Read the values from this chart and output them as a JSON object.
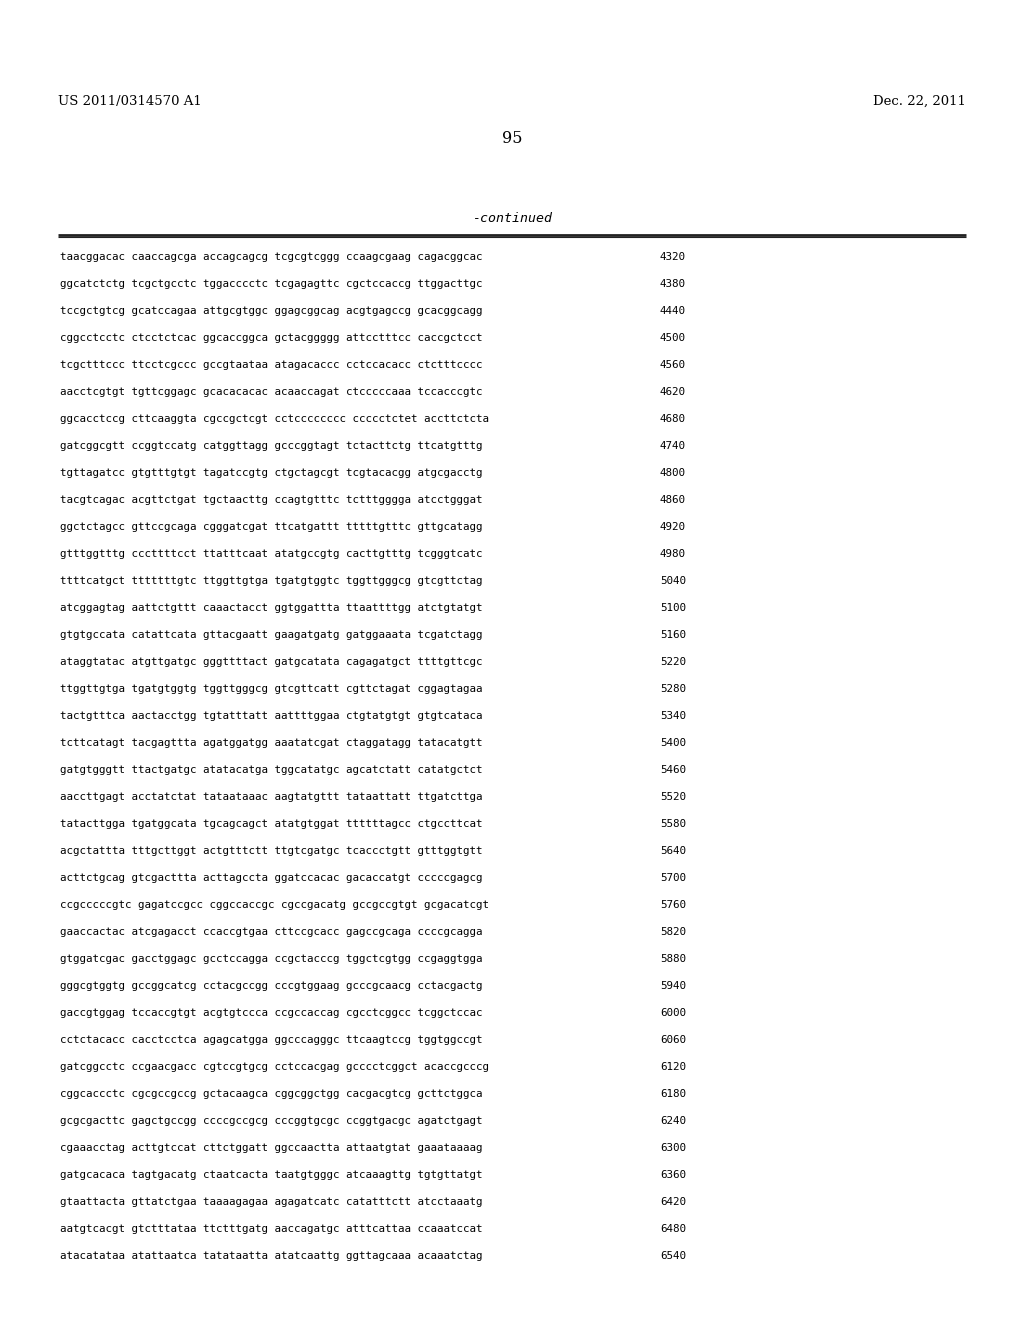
{
  "header_left": "US 2011/0314570 A1",
  "header_right": "Dec. 22, 2011",
  "page_number": "95",
  "continued_label": "-continued",
  "background_color": "#ffffff",
  "text_color": "#000000",
  "font_size_header": 9.5,
  "font_size_body": 7.8,
  "font_size_page": 11.5,
  "font_size_continued": 9.5,
  "sequence_lines": [
    [
      "taacggacac caaccagcga accagcagcg tcgcgtcggg ccaagcgaag cagacggcac",
      "4320"
    ],
    [
      "ggcatctctg tcgctgcctc tggacccctc tcgagagttc cgctccaccg ttggacttgc",
      "4380"
    ],
    [
      "tccgctgtcg gcatccagaa attgcgtggc ggagcggcag acgtgagccg gcacggcagg",
      "4440"
    ],
    [
      "cggcctcctc ctcctctcac ggcaccggca gctacggggg attcctttcc caccgctcct",
      "4500"
    ],
    [
      "tcgctttccc ttcctcgccc gccgtaataa atagacaccc cctccacacc ctctttcccc",
      "4560"
    ],
    [
      "aacctcgtgt tgttcggagc gcacacacac acaaccagat ctcccccaaa tccacccgtc",
      "4620"
    ],
    [
      "ggcacctccg cttcaaggta cgccgctcgt cctcccccccc ccccctctet accttctcta",
      "4680"
    ],
    [
      "gatcggcgtt ccggtccatg catggttagg gcccggtagt tctacttctg ttcatgtttg",
      "4740"
    ],
    [
      "tgttagatcc gtgtttgtgt tagatccgtg ctgctagcgt tcgtacacgg atgcgacctg",
      "4800"
    ],
    [
      "tacgtcagac acgttctgat tgctaacttg ccagtgtttc tctttgggga atcctgggat",
      "4860"
    ],
    [
      "ggctctagcc gttccgcaga cgggatcgat ttcatgattt tttttgtttc gttgcatagg",
      "4920"
    ],
    [
      "gtttggtttg cccttttcct ttatttcaat atatgccgtg cacttgtttg tcgggtcatc",
      "4980"
    ],
    [
      "ttttcatgct tttttttgtc ttggttgtga tgatgtggtc tggttgggcg gtcgttctag",
      "5040"
    ],
    [
      "atcggagtag aattctgttt caaactacct ggtggattta ttaattttgg atctgtatgt",
      "5100"
    ],
    [
      "gtgtgccata catattcata gttacgaatt gaagatgatg gatggaaata tcgatctagg",
      "5160"
    ],
    [
      "ataggtatac atgttgatgc gggttttact gatgcatata cagagatgct ttttgttcgc",
      "5220"
    ],
    [
      "ttggttgtga tgatgtggtg tggttgggcg gtcgttcatt cgttctagat cggagtagaa",
      "5280"
    ],
    [
      "tactgtttca aactacctgg tgtatttatt aattttggaa ctgtatgtgt gtgtcataca",
      "5340"
    ],
    [
      "tcttcatagt tacgagttta agatggatgg aaatatcgat ctaggatagg tatacatgtt",
      "5400"
    ],
    [
      "gatgtgggtt ttactgatgc atatacatga tggcatatgc agcatctatt catatgctct",
      "5460"
    ],
    [
      "aaccttgagt acctatctat tataataaac aagtatgttt tataattatt ttgatcttga",
      "5520"
    ],
    [
      "tatacttgga tgatggcata tgcagcagct atatgtggat ttttttagcc ctgccttcat",
      "5580"
    ],
    [
      "acgctattta tttgcttggt actgtttctt ttgtcgatgc tcaccctgtt gtttggtgtt",
      "5640"
    ],
    [
      "acttctgcag gtcgacttta acttagccta ggatccacac gacaccatgt cccccgagcg",
      "5700"
    ],
    [
      "ccgcccccgtc gagatccgcc cggccaccgc cgccgacatg gccgccgtgt gcgacatcgt",
      "5760"
    ],
    [
      "gaaccactac atcgagacct ccaccgtgaa cttccgcacc gagccgcaga ccccgcagga",
      "5820"
    ],
    [
      "gtggatcgac gacctggagc gcctccagga ccgctacccg tggctcgtgg ccgaggtgga",
      "5880"
    ],
    [
      "gggcgtggtg gccggcatcg cctacgccgg cccgtggaag gcccgcaacg cctacgactg",
      "5940"
    ],
    [
      "gaccgtggag tccaccgtgt acgtgtccca ccgccaccag cgcctcggcc tcggctccac",
      "6000"
    ],
    [
      "cctctacacc cacctcctca agagcatgga ggcccagggc ttcaagtccg tggtggccgt",
      "6060"
    ],
    [
      "gatcggcctc ccgaacgacc cgtccgtgcg cctccacgag gcccctcggct acaccgcccg",
      "6120"
    ],
    [
      "cggcaccctc cgcgccgccg gctacaagca cggcggctgg cacgacgtcg gcttctggca",
      "6180"
    ],
    [
      "gcgcgacttc gagctgccgg ccccgccgcg cccggtgcgc ccggtgacgc agatctgagt",
      "6240"
    ],
    [
      "cgaaacctag acttgtccat cttctggatt ggccaactta attaatgtat gaaataaaag",
      "6300"
    ],
    [
      "gatgcacaca tagtgacatg ctaatcacta taatgtgggc atcaaagttg tgtgttatgt",
      "6360"
    ],
    [
      "gtaattacta gttatctgaa taaaagagaa agagatcatc catatttctt atcctaaatg",
      "6420"
    ],
    [
      "aatgtcacgt gtctttataa ttctttgatg aaccagatgc atttcattaa ccaaatccat",
      "6480"
    ],
    [
      "atacatataa atattaatca tatataatta atatcaattg ggttagcaaa acaaatctag",
      "6540"
    ]
  ]
}
